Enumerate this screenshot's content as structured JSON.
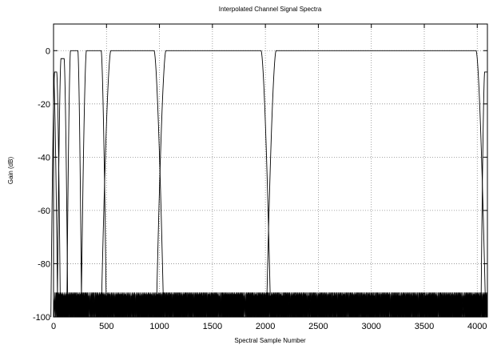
{
  "chart_data": {
    "type": "line",
    "title": "Interpolated Channel Signal Spectra",
    "xlabel": "Spectral Sample Number",
    "ylabel": "Gain (dB)",
    "xlim": [
      0,
      4096
    ],
    "ylim": [
      -100,
      10
    ],
    "x_ticks": [
      0,
      500,
      1000,
      1500,
      2000,
      2500,
      3000,
      3500,
      4000
    ],
    "y_ticks": [
      0,
      -20,
      -40,
      -60,
      -80,
      -100
    ],
    "grid": true,
    "legend": "none",
    "series": [
      {
        "passband": [
          0,
          4
        ],
        "peak": -8,
        "shape": "lowpass"
      },
      {
        "passband": [
          10,
          30
        ],
        "peak": -8,
        "shape": "bandpass"
      },
      {
        "passband": [
          70,
          100
        ],
        "peak": -3,
        "shape": "bandpass"
      },
      {
        "passband": [
          160,
          230
        ],
        "peak": 0,
        "shape": "bandpass"
      },
      {
        "passband": [
          310,
          450
        ],
        "peak": 0,
        "shape": "bandpass"
      },
      {
        "passband": [
          540,
          950
        ],
        "peak": 0,
        "shape": "bandpass"
      },
      {
        "passband": [
          1060,
          1960
        ],
        "peak": 0,
        "shape": "bandpass"
      },
      {
        "passband": [
          2100,
          3990
        ],
        "peak": 0,
        "shape": "bandpass"
      },
      {
        "passband": [
          4070,
          4096
        ],
        "peak": -8,
        "shape": "highpass"
      }
    ],
    "stopband_floor": -92,
    "colors": {
      "line": "#000000",
      "grid": "#8a8a8a",
      "background": "#ffffff"
    }
  }
}
